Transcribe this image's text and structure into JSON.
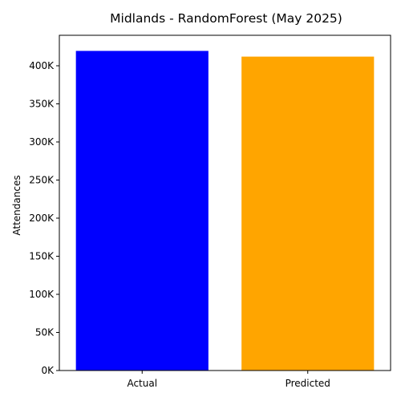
{
  "chart_data": {
    "type": "bar",
    "title": "Midlands - RandomForest (May 2025)",
    "xlabel": "",
    "ylabel": "Attendances",
    "categories": [
      "Actual",
      "Predicted"
    ],
    "values": [
      419500,
      412000
    ],
    "colors": [
      "#0000ff",
      "#ffa500"
    ],
    "ylim": [
      0,
      440000
    ],
    "yticks": [
      0,
      50000,
      100000,
      150000,
      200000,
      250000,
      300000,
      350000,
      400000
    ],
    "ytick_labels": [
      "0K",
      "50K",
      "100K",
      "150K",
      "200K",
      "250K",
      "300K",
      "350K",
      "400K"
    ],
    "grid": false,
    "legend": "none"
  }
}
